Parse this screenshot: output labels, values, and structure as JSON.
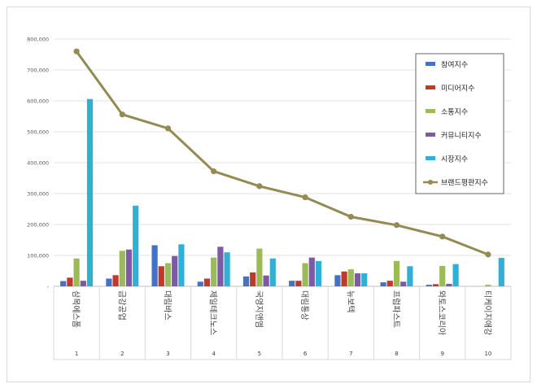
{
  "chart_data": {
    "type": "bar",
    "title": "",
    "xlabel": "",
    "ylabel": "",
    "ylim": [
      0,
      800000
    ],
    "y_ticks": [
      "-",
      "100,000",
      "200,000",
      "300,000",
      "400,000",
      "500,000",
      "600,000",
      "700,000",
      "800,000"
    ],
    "grid": true,
    "legend_position": "top-right",
    "categories": [
      "삼목에스폼",
      "금강공업",
      "대림바스",
      "제일테크노스",
      "국영지앤엠",
      "대림통상",
      "뉴보텍",
      "프럼파스트",
      "와토스코리아",
      "티케이지애강"
    ],
    "ranks": [
      "1",
      "2",
      "3",
      "4",
      "5",
      "6",
      "7",
      "8",
      "9",
      "10"
    ],
    "series": [
      {
        "name": "참여지수",
        "kind": "bar",
        "color": "#4472C4",
        "values": [
          17000,
          25000,
          133000,
          15000,
          32000,
          18000,
          36000,
          13000,
          5000,
          0
        ]
      },
      {
        "name": "미디어지수",
        "kind": "bar",
        "color": "#C0392B",
        "values": [
          28000,
          36000,
          65000,
          25000,
          45000,
          18000,
          48000,
          18000,
          7000,
          0
        ]
      },
      {
        "name": "소통지수",
        "kind": "bar",
        "color": "#9BBB59",
        "values": [
          90000,
          115000,
          75000,
          93000,
          122000,
          75000,
          55000,
          82000,
          66000,
          5000
        ]
      },
      {
        "name": "커뮤니티지수",
        "kind": "bar",
        "color": "#7D5AA6",
        "values": [
          18000,
          119000,
          98000,
          128000,
          35000,
          93000,
          42000,
          15000,
          8000,
          0
        ]
      },
      {
        "name": "시장지수",
        "kind": "bar",
        "color": "#31B0D5",
        "values": [
          606000,
          261000,
          136000,
          110000,
          90000,
          82000,
          42000,
          65000,
          72000,
          92000
        ]
      },
      {
        "name": "브랜드평판지수",
        "kind": "line",
        "color": "#948A54",
        "values": [
          760000,
          556000,
          511000,
          372000,
          324000,
          288000,
          225000,
          198000,
          161000,
          103000
        ]
      }
    ]
  }
}
